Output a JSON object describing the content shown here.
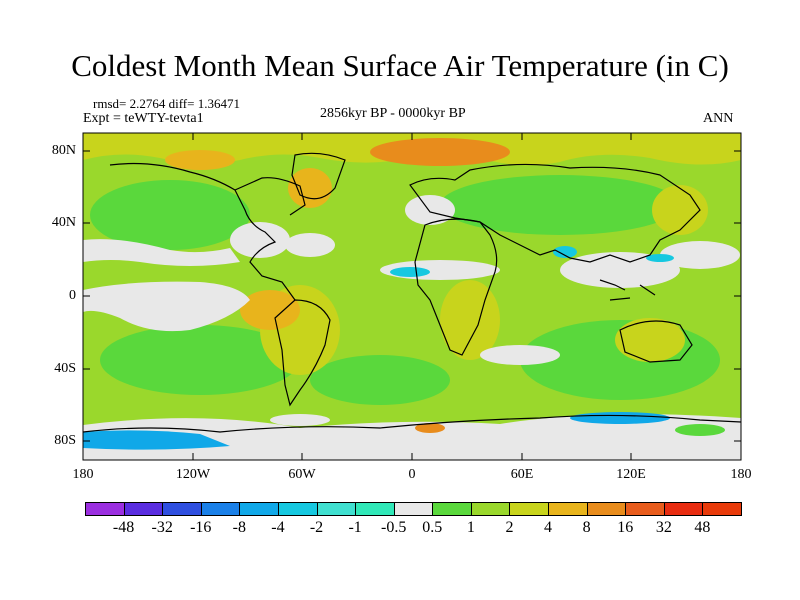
{
  "title": "Coldest Month Mean Surface Air Temperature (in C)",
  "stats": "rmsd= 2.2764 diff= 1.36471",
  "experiment": "Expt = teWTY-tevta1",
  "period": "2856kyr BP - 0000kyr BP",
  "season": "ANN",
  "lat_ticks": [
    "80N",
    "40N",
    "0",
    "40S",
    "80S"
  ],
  "lon_ticks": [
    "180",
    "120W",
    "60W",
    "0",
    "60E",
    "120E",
    "180"
  ],
  "colorbar": {
    "labels": [
      "-48",
      "-32",
      "-16",
      "-8",
      "-4",
      "-2",
      "-1",
      "-0.5",
      "0.5",
      "1",
      "2",
      "4",
      "8",
      "16",
      "32",
      "48"
    ],
    "colors": [
      "#9b2fe0",
      "#5a2de0",
      "#2f4fe0",
      "#1a80e8",
      "#10a8e8",
      "#16c8e0",
      "#40e0d0",
      "#30e8b8",
      "#e8e8e8",
      "#5ad83c",
      "#9ad82c",
      "#c8d41c",
      "#e8b41c",
      "#e88c1c",
      "#e85c1c",
      "#e82c10",
      "#e83a0a"
    ]
  }
}
